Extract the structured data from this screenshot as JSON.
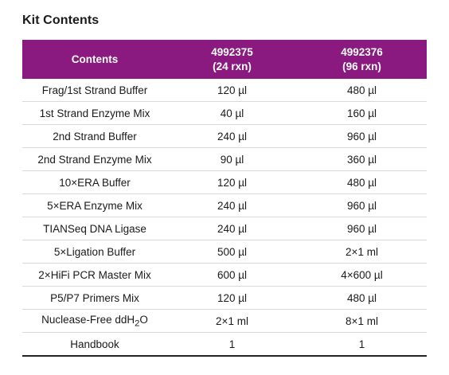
{
  "title": "Kit Contents",
  "header": {
    "contents": "Contents",
    "col1_code": "4992375",
    "col1_rxn": "(24 rxn)",
    "col2_code": "4992376",
    "col2_rxn": "(96 rxn)"
  },
  "rows": [
    {
      "name": "Frag/1st Strand Buffer",
      "a": "120 µl",
      "b": "480 µl"
    },
    {
      "name": "1st Strand Enzyme Mix",
      "a": "40 µl",
      "b": "160 µl"
    },
    {
      "name": "2nd Strand Buffer",
      "a": "240 µl",
      "b": "960 µl"
    },
    {
      "name": "2nd Strand Enzyme Mix",
      "a": "90 µl",
      "b": "360 µl"
    },
    {
      "name": "10×ERA Buffer",
      "a": "120 µl",
      "b": "480 µl"
    },
    {
      "name": "5×ERA Enzyme Mix",
      "a": "240 µl",
      "b": "960 µl"
    },
    {
      "name": "TIANSeq DNA Ligase",
      "a": "240 µl",
      "b": "960 µl"
    },
    {
      "name": "5×Ligation Buffer",
      "a": "500 µl",
      "b": "2×1 ml"
    },
    {
      "name": "2×HiFi PCR Master Mix",
      "a": "600 µl",
      "b": "4×600 µl"
    },
    {
      "name": "P5/P7 Primers Mix",
      "a": "120 µl",
      "b": "480 µl"
    },
    {
      "name_pre": "Nuclease-Free ddH",
      "name_sub": "2",
      "name_post": "O",
      "a": "2×1 ml",
      "b": "8×1 ml"
    },
    {
      "name": "Handbook",
      "a": "1",
      "b": "1"
    }
  ]
}
